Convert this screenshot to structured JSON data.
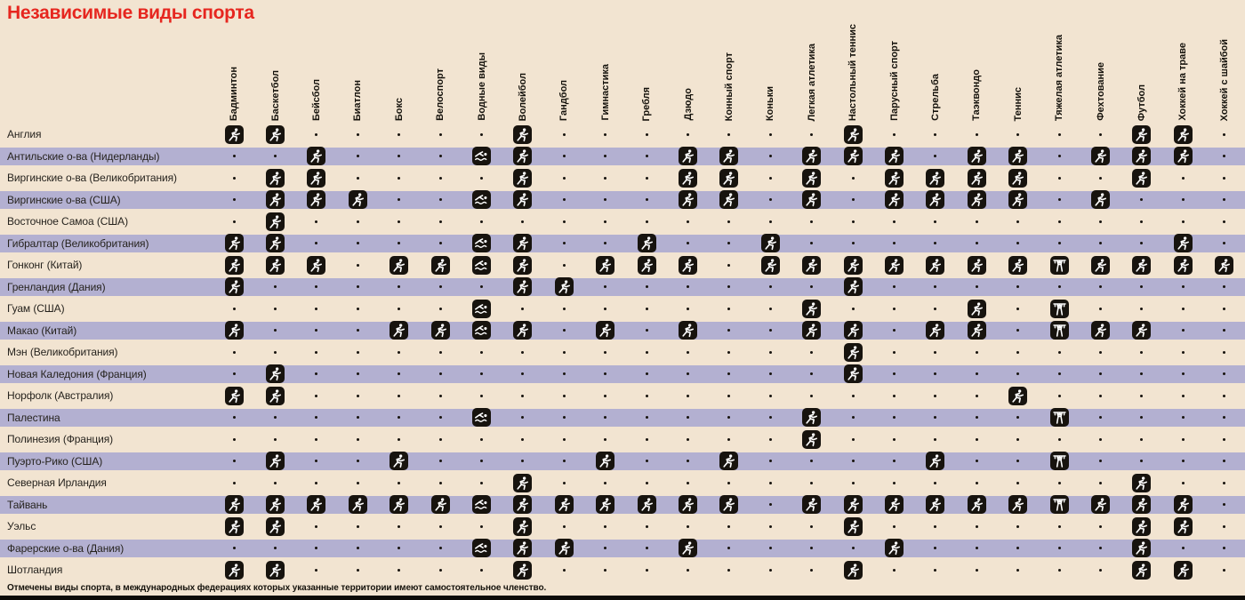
{
  "title": "Независимые виды спорта",
  "footnote": "Отмечены виды спорта, в международных федерациях которых указанные территории имеют самостоятельное членство.",
  "colors": {
    "background": "#f2e4d1",
    "stripe": "#b3b0d1",
    "title_red": "#e6261f",
    "text": "#15120c",
    "icon_background": "#17130e",
    "icon_figure": "#ffffff",
    "bottom_rule": "#0d0b08"
  },
  "legend": {
    "icon_means": "самостоятельное членство в международной федерации",
    "dot_means": "нет членства"
  },
  "chart_data": {
    "type": "table",
    "columns": [
      "Бадминтон",
      "Баскетбол",
      "Бейсбол",
      "Биатлон",
      "Бокс",
      "Велоспорт",
      "Водные виды",
      "Волейбол",
      "Гандбол",
      "Гимнастика",
      "Гребля",
      "Дзюдо",
      "Конный спорт",
      "Коньки",
      "Легкая атлетика",
      "Настольный теннис",
      "Парусный спорт",
      "Стрельба",
      "Таэквондо",
      "Теннис",
      "Тяжелая атлетика",
      "Фехтование",
      "Футбол",
      "Хоккей на траве",
      "Хоккей с шайбой"
    ],
    "column_icons": [
      "badminton",
      "basketball",
      "baseball",
      "biathlon",
      "boxing",
      "cycling",
      "aquatics",
      "volleyball",
      "handball",
      "gymnastics",
      "rowing",
      "judo",
      "equestrian",
      "skating",
      "athletics",
      "table-tennis",
      "sailing",
      "shooting",
      "taekwondo",
      "tennis",
      "weightlifting",
      "fencing",
      "football",
      "field-hockey",
      "ice-hockey"
    ],
    "rows": [
      {
        "territory": "Англия",
        "cells": [
          1,
          1,
          0,
          0,
          0,
          0,
          0,
          1,
          0,
          0,
          0,
          0,
          0,
          0,
          0,
          1,
          0,
          0,
          0,
          0,
          0,
          0,
          1,
          1,
          0
        ]
      },
      {
        "territory": "Антильские о-ва (Нидерланды)",
        "cells": [
          0,
          0,
          1,
          0,
          0,
          0,
          1,
          1,
          0,
          0,
          0,
          1,
          1,
          0,
          1,
          1,
          1,
          0,
          1,
          1,
          0,
          1,
          1,
          1,
          0
        ]
      },
      {
        "territory": "Виргинские о-ва (Великобритания)",
        "cells": [
          0,
          1,
          1,
          0,
          0,
          0,
          0,
          1,
          0,
          0,
          0,
          1,
          1,
          0,
          1,
          0,
          1,
          1,
          1,
          1,
          0,
          0,
          1,
          0,
          0
        ]
      },
      {
        "territory": "Виргинские о-ва (США)",
        "cells": [
          0,
          1,
          1,
          1,
          0,
          0,
          1,
          1,
          0,
          0,
          0,
          1,
          1,
          0,
          1,
          0,
          1,
          1,
          1,
          1,
          0,
          1,
          0,
          0,
          0
        ]
      },
      {
        "territory": "Восточное Самоа (США)",
        "cells": [
          0,
          1,
          0,
          0,
          0,
          0,
          0,
          0,
          0,
          0,
          0,
          0,
          0,
          0,
          0,
          0,
          0,
          0,
          0,
          0,
          0,
          0,
          0,
          0,
          0
        ]
      },
      {
        "territory": "Гибралтар (Великобритания)",
        "cells": [
          1,
          1,
          0,
          0,
          0,
          0,
          1,
          1,
          0,
          0,
          1,
          0,
          0,
          1,
          0,
          0,
          0,
          0,
          0,
          0,
          0,
          0,
          0,
          1,
          0
        ]
      },
      {
        "territory": "Гонконг (Китай)",
        "cells": [
          1,
          1,
          1,
          0,
          1,
          1,
          1,
          1,
          0,
          1,
          1,
          1,
          0,
          1,
          1,
          1,
          1,
          1,
          1,
          1,
          1,
          1,
          1,
          1,
          1
        ]
      },
      {
        "territory": "Гренландия (Дания)",
        "cells": [
          1,
          0,
          0,
          0,
          0,
          0,
          0,
          1,
          1,
          0,
          0,
          0,
          0,
          0,
          0,
          1,
          0,
          0,
          0,
          0,
          0,
          0,
          0,
          0,
          0
        ]
      },
      {
        "territory": "Гуам (США)",
        "cells": [
          0,
          0,
          0,
          0,
          0,
          0,
          1,
          0,
          0,
          0,
          0,
          0,
          0,
          0,
          1,
          0,
          0,
          0,
          1,
          0,
          1,
          0,
          0,
          0,
          0
        ]
      },
      {
        "territory": "Макао (Китай)",
        "cells": [
          1,
          0,
          0,
          0,
          1,
          1,
          1,
          1,
          0,
          1,
          0,
          1,
          0,
          0,
          1,
          1,
          0,
          1,
          1,
          0,
          1,
          1,
          1,
          0,
          0
        ]
      },
      {
        "territory": "Мэн (Великобритания)",
        "cells": [
          0,
          0,
          0,
          0,
          0,
          0,
          0,
          0,
          0,
          0,
          0,
          0,
          0,
          0,
          0,
          1,
          0,
          0,
          0,
          0,
          0,
          0,
          0,
          0,
          0
        ]
      },
      {
        "territory": "Новая Каледония (Франция)",
        "cells": [
          0,
          1,
          0,
          0,
          0,
          0,
          0,
          0,
          0,
          0,
          0,
          0,
          0,
          0,
          0,
          1,
          0,
          0,
          0,
          0,
          0,
          0,
          0,
          0,
          0
        ]
      },
      {
        "territory": "Норфолк (Австралия)",
        "cells": [
          1,
          1,
          0,
          0,
          0,
          0,
          0,
          0,
          0,
          0,
          0,
          0,
          0,
          0,
          0,
          0,
          0,
          0,
          0,
          1,
          0,
          0,
          0,
          0,
          0
        ]
      },
      {
        "territory": "Палестина",
        "cells": [
          0,
          0,
          0,
          0,
          0,
          0,
          1,
          0,
          0,
          0,
          0,
          0,
          0,
          0,
          1,
          0,
          0,
          0,
          0,
          0,
          1,
          0,
          0,
          0,
          0
        ]
      },
      {
        "territory": "Полинезия (Франция)",
        "cells": [
          0,
          0,
          0,
          0,
          0,
          0,
          0,
          0,
          0,
          0,
          0,
          0,
          0,
          0,
          1,
          0,
          0,
          0,
          0,
          0,
          0,
          0,
          0,
          0,
          0
        ]
      },
      {
        "territory": "Пуэрто-Рико (США)",
        "cells": [
          0,
          1,
          0,
          0,
          1,
          0,
          0,
          0,
          0,
          1,
          0,
          0,
          1,
          0,
          0,
          0,
          0,
          1,
          0,
          0,
          1,
          0,
          0,
          0,
          0
        ]
      },
      {
        "territory": "Северная Ирландия",
        "cells": [
          0,
          0,
          0,
          0,
          0,
          0,
          0,
          1,
          0,
          0,
          0,
          0,
          0,
          0,
          0,
          0,
          0,
          0,
          0,
          0,
          0,
          0,
          1,
          0,
          0
        ]
      },
      {
        "territory": "Тайвань",
        "cells": [
          1,
          1,
          1,
          1,
          1,
          1,
          1,
          1,
          1,
          1,
          1,
          1,
          1,
          0,
          1,
          1,
          1,
          1,
          1,
          1,
          1,
          1,
          1,
          1,
          0
        ]
      },
      {
        "territory": "Уэльс",
        "cells": [
          1,
          1,
          0,
          0,
          0,
          0,
          0,
          1,
          0,
          0,
          0,
          0,
          0,
          0,
          0,
          1,
          0,
          0,
          0,
          0,
          0,
          0,
          1,
          1,
          0
        ]
      },
      {
        "territory": "Фарерские о-ва (Дания)",
        "cells": [
          0,
          0,
          0,
          0,
          0,
          0,
          1,
          1,
          1,
          0,
          0,
          1,
          0,
          0,
          0,
          0,
          1,
          0,
          0,
          0,
          0,
          0,
          1,
          0,
          0
        ]
      },
      {
        "territory": "Шотландия",
        "cells": [
          1,
          1,
          0,
          0,
          0,
          0,
          0,
          1,
          0,
          0,
          0,
          0,
          0,
          0,
          0,
          1,
          0,
          0,
          0,
          0,
          0,
          0,
          1,
          1,
          0
        ]
      }
    ]
  }
}
